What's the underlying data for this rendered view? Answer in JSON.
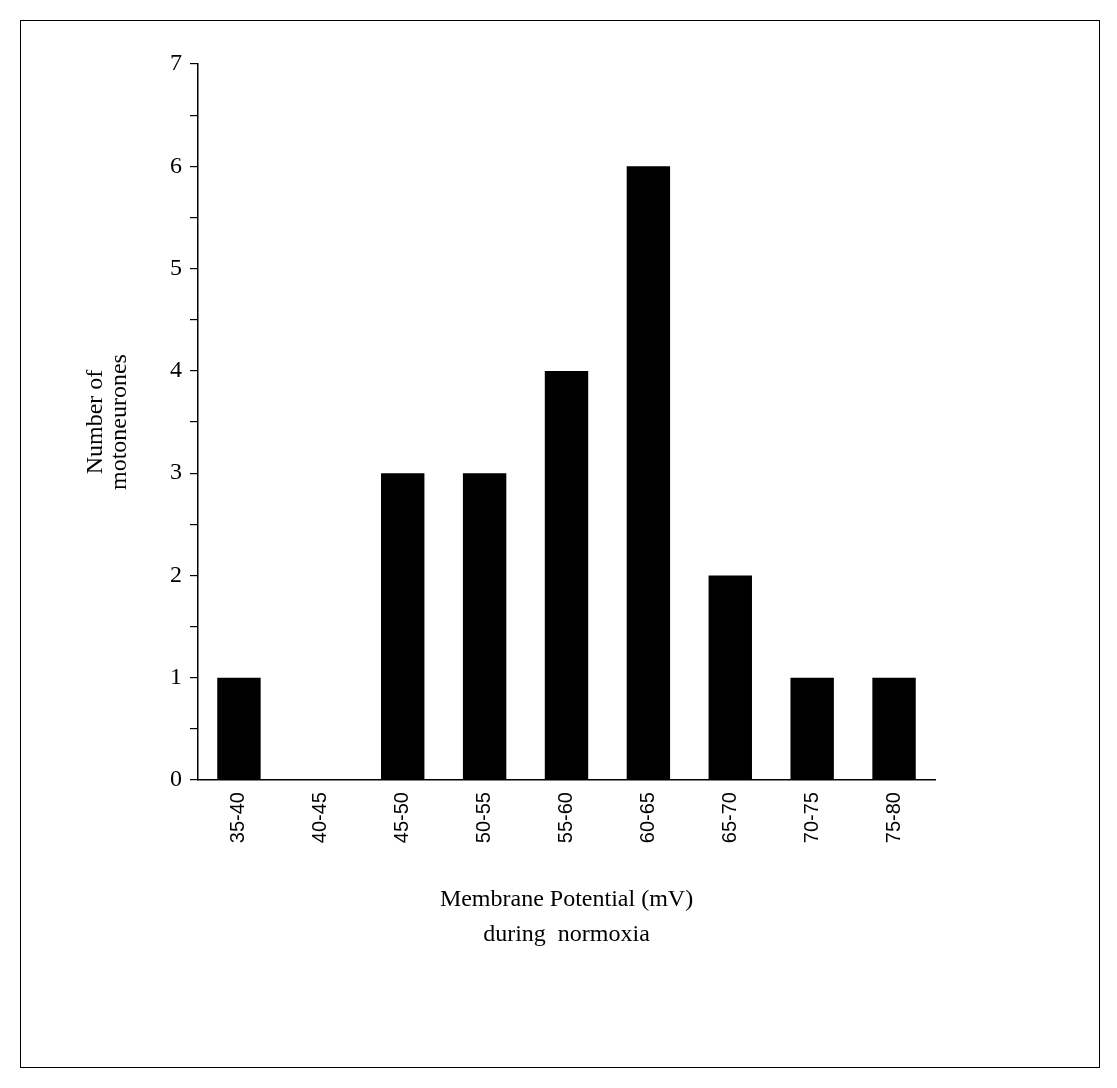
{
  "chart_data": {
    "type": "bar",
    "xlabel": "Membrane Potential (mV)",
    "ylabel": "Number of motoneurones",
    "annotations": [
      "during  normoxia"
    ],
    "categories": [
      "35-40",
      "40-45",
      "45-50",
      "50-55",
      "55-60",
      "60-65",
      "65-70",
      "70-75",
      "75-80"
    ],
    "values": [
      1,
      0,
      3,
      3,
      4,
      6,
      2,
      1,
      1
    ],
    "color": "#000000",
    "ylim": [
      0,
      7
    ],
    "yticks": [
      0,
      {
        "value": 0.5,
        "label": null
      },
      1,
      {
        "value": 1.5,
        "label": null
      },
      2,
      {
        "value": 2.5,
        "label": null
      },
      3,
      {
        "value": 3.5,
        "label": null
      },
      4,
      {
        "value": 4.5,
        "label": null
      },
      5,
      {
        "value": 5.5,
        "label": null
      },
      6,
      {
        "value": 6.5,
        "label": null
      },
      7
    ],
    "grid": false,
    "legend": false
  }
}
